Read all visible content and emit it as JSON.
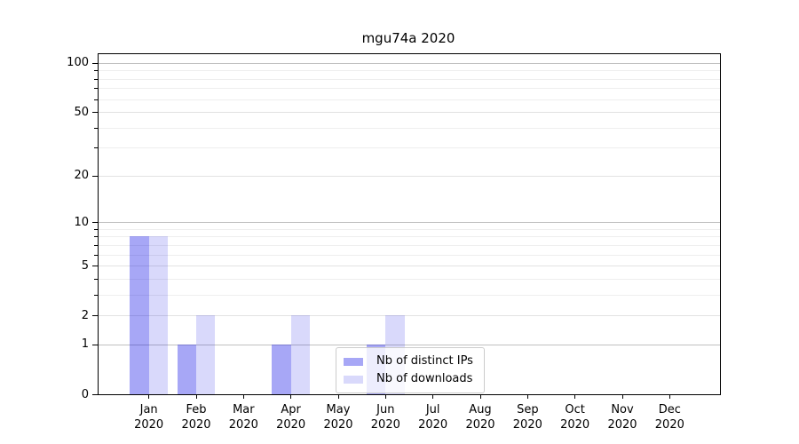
{
  "chart_data": {
    "type": "bar",
    "title": "mgu74a 2020",
    "categories": [
      "Jan 2020",
      "Feb 2020",
      "Mar 2020",
      "Apr 2020",
      "May 2020",
      "Jun 2020",
      "Jul 2020",
      "Aug 2020",
      "Sep 2020",
      "Oct 2020",
      "Nov 2020",
      "Dec 2020"
    ],
    "series": [
      {
        "name": "Nb of distinct IPs",
        "color": "#0f0fe65d",
        "values": [
          8,
          1,
          0,
          1,
          0,
          1,
          0,
          0,
          0,
          0,
          0,
          0
        ]
      },
      {
        "name": "Nb of downloads",
        "color": "#0f0fe628",
        "values": [
          8,
          2,
          0,
          2,
          0,
          2,
          0,
          0,
          0,
          0,
          0,
          0
        ]
      }
    ],
    "y_axis": {
      "scale": "log1p",
      "ticks_labeled": [
        0,
        1,
        2,
        5,
        10,
        20,
        50,
        100
      ],
      "ticks_minor": [
        3,
        4,
        6,
        7,
        8,
        9,
        30,
        40,
        60,
        70,
        80,
        90
      ],
      "strong_gridlines": [
        1,
        10,
        100
      ],
      "ylim": [
        0,
        113
      ]
    },
    "legend_position": "inside-bottom-center",
    "grid": true,
    "colors": {
      "grid_strong": "#c0c0c0",
      "grid_mid": "#e2e2e2",
      "grid_minor": "#eeeeee",
      "spine": "#000000",
      "text": "#000000",
      "legend_border": "#cccccc"
    }
  }
}
